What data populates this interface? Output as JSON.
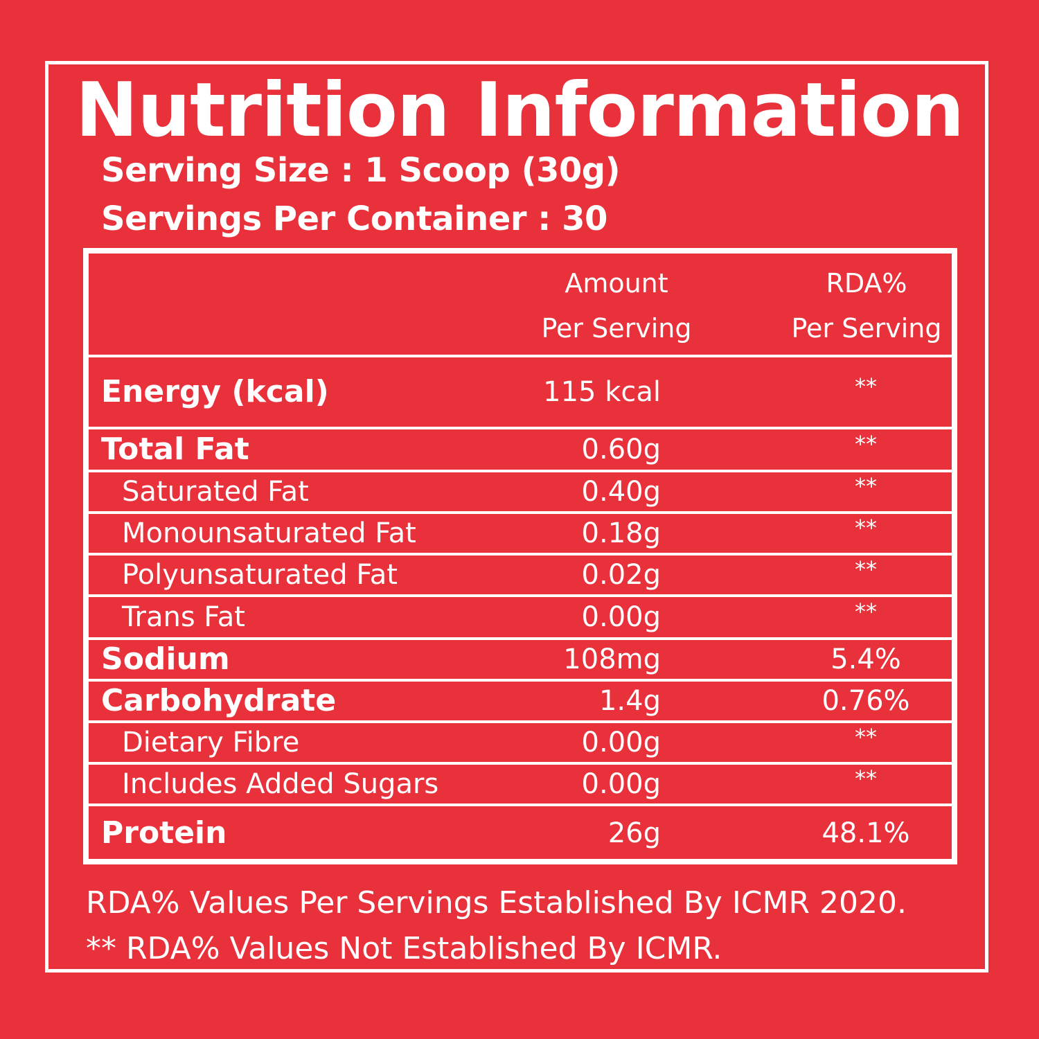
{
  "title": "Nutrition Information",
  "serving_size": "Serving Size : 1 Scoop (30g)",
  "servings_per_container": "Servings Per Container : 30",
  "table": {
    "header": {
      "amount_line1": "Amount",
      "amount_line2": "Per Serving",
      "rda_line1": "RDA%",
      "rda_line2": "Per Serving"
    },
    "rows": [
      {
        "name": "Energy (kcal)",
        "amount": "115 kcal",
        "rda": "**",
        "sub": false
      },
      {
        "name": "Total Fat",
        "amount": "0.60g",
        "rda": "**",
        "sub": false
      },
      {
        "name": "Saturated Fat",
        "amount": "0.40g",
        "rda": "**",
        "sub": true
      },
      {
        "name": "Monounsaturated Fat",
        "amount": "0.18g",
        "rda": "**",
        "sub": true
      },
      {
        "name": "Polyunsaturated Fat",
        "amount": "0.02g",
        "rda": "**",
        "sub": true
      },
      {
        "name": "Trans Fat",
        "amount": "0.00g",
        "rda": "**",
        "sub": true
      },
      {
        "name": "Sodium",
        "amount": "108mg",
        "rda": "5.4%",
        "sub": false
      },
      {
        "name": "Carbohydrate",
        "amount": "1.4g",
        "rda": "0.76%",
        "sub": false
      },
      {
        "name": "Dietary Fibre",
        "amount": "0.00g",
        "rda": "**",
        "sub": true
      },
      {
        "name": "Includes Added Sugars",
        "amount": "0.00g",
        "rda": "**",
        "sub": true
      },
      {
        "name": "Protein",
        "amount": "26g",
        "rda": "48.1%",
        "sub": false
      }
    ]
  },
  "footnotes": {
    "line1": "RDA% Values Per Servings Established By ICMR 2020.",
    "line2": "** RDA% Values Not Established By ICMR."
  },
  "colors": {
    "background": "#e8313a",
    "foreground": "#ffffff"
  }
}
